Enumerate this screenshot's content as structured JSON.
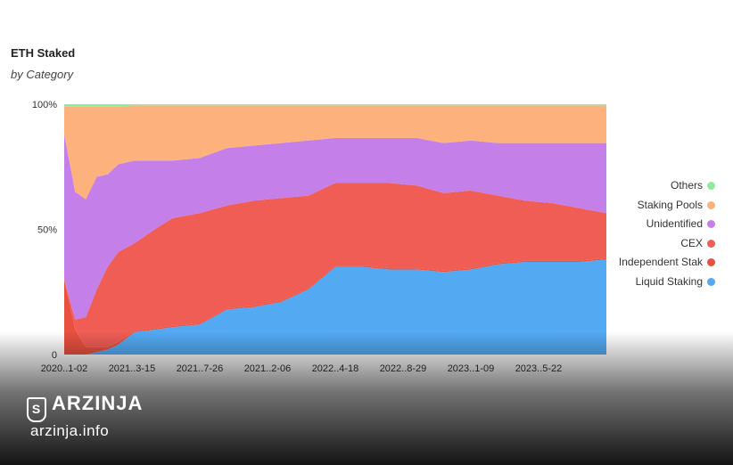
{
  "header": {
    "title": "ETH Staked",
    "subtitle": "by Category"
  },
  "brand": {
    "name": "ARZINJA",
    "site": "arzinja.info",
    "logo": "shield-s-icon"
  },
  "chart_data": {
    "type": "area",
    "stacked": true,
    "normalized": true,
    "title": "ETH Staked",
    "subtitle": "by Category",
    "yticks": [
      "0",
      "50%",
      "100%"
    ],
    "ylim": [
      0,
      100
    ],
    "x": [
      0,
      0.02,
      0.04,
      0.06,
      0.08,
      0.1,
      0.13,
      0.17,
      0.2,
      0.25,
      0.3,
      0.35,
      0.4,
      0.45,
      0.5,
      0.55,
      0.6,
      0.65,
      0.7,
      0.75,
      0.8,
      0.85,
      0.9,
      0.95,
      1.0
    ],
    "xtick_positions": [
      0,
      0.125,
      0.25,
      0.375,
      0.5,
      0.625,
      0.75,
      0.875
    ],
    "xticks": [
      "2020..1-02",
      "2021..3-15",
      "2021..7-26",
      "2021..2-06",
      "2022..4-18",
      "2022..8-29",
      "2023..1-09",
      "2023..5-22"
    ],
    "legend_position": "right",
    "series": [
      {
        "name": "Liquid Staking",
        "color": "#53a9f2",
        "values": [
          0,
          0,
          0,
          1,
          2,
          4,
          9,
          10,
          11,
          12,
          18,
          19,
          21,
          26,
          35,
          35,
          34,
          34,
          33,
          34,
          36,
          37,
          37,
          37,
          38
        ]
      },
      {
        "name": "Independent Stak",
        "color": "#e8503f",
        "values": [
          30,
          10,
          3,
          2,
          1,
          1,
          0.5,
          0.5,
          0.5,
          0.5,
          0.5,
          0.5,
          0.5,
          0.5,
          0.5,
          0.5,
          0.5,
          0.5,
          0.5,
          0.5,
          0.5,
          0.5,
          0.5,
          0.5,
          0.5
        ]
      },
      {
        "name": "CEX",
        "color": "#ef5d55",
        "values": [
          0,
          4,
          12,
          23,
          32,
          36,
          35,
          40,
          43,
          44,
          41,
          42,
          41,
          37,
          33,
          33,
          34,
          33,
          31,
          31,
          27,
          24,
          23,
          21,
          18
        ]
      },
      {
        "name": "Unidentified",
        "color": "#c47fe8",
        "values": [
          58,
          51,
          47,
          45,
          37,
          35,
          33,
          27,
          23,
          22,
          23,
          22,
          22,
          22,
          18,
          18,
          18,
          19,
          20,
          20,
          21,
          23,
          24,
          26,
          28
        ]
      },
      {
        "name": "Staking Pools",
        "color": "#fdb17c",
        "values": [
          11,
          34,
          37,
          28,
          27,
          23,
          22,
          22,
          22,
          21,
          17,
          16,
          15,
          14,
          13,
          13,
          13,
          13,
          15,
          14,
          15,
          15,
          15,
          15,
          15
        ]
      },
      {
        "name": "Others",
        "color": "#90eb9b",
        "values": [
          1,
          1,
          1,
          1,
          1,
          1,
          0.5,
          0.5,
          0.5,
          0.5,
          0.5,
          0.5,
          0.5,
          0.5,
          0.5,
          0.5,
          0.5,
          0.5,
          0.5,
          0.5,
          0.5,
          0.5,
          0.5,
          0.5,
          0.5
        ]
      }
    ],
    "legend_order": [
      "Others",
      "Staking Pools",
      "Unidentified",
      "CEX",
      "Independent Stak",
      "Liquid Staking"
    ]
  }
}
